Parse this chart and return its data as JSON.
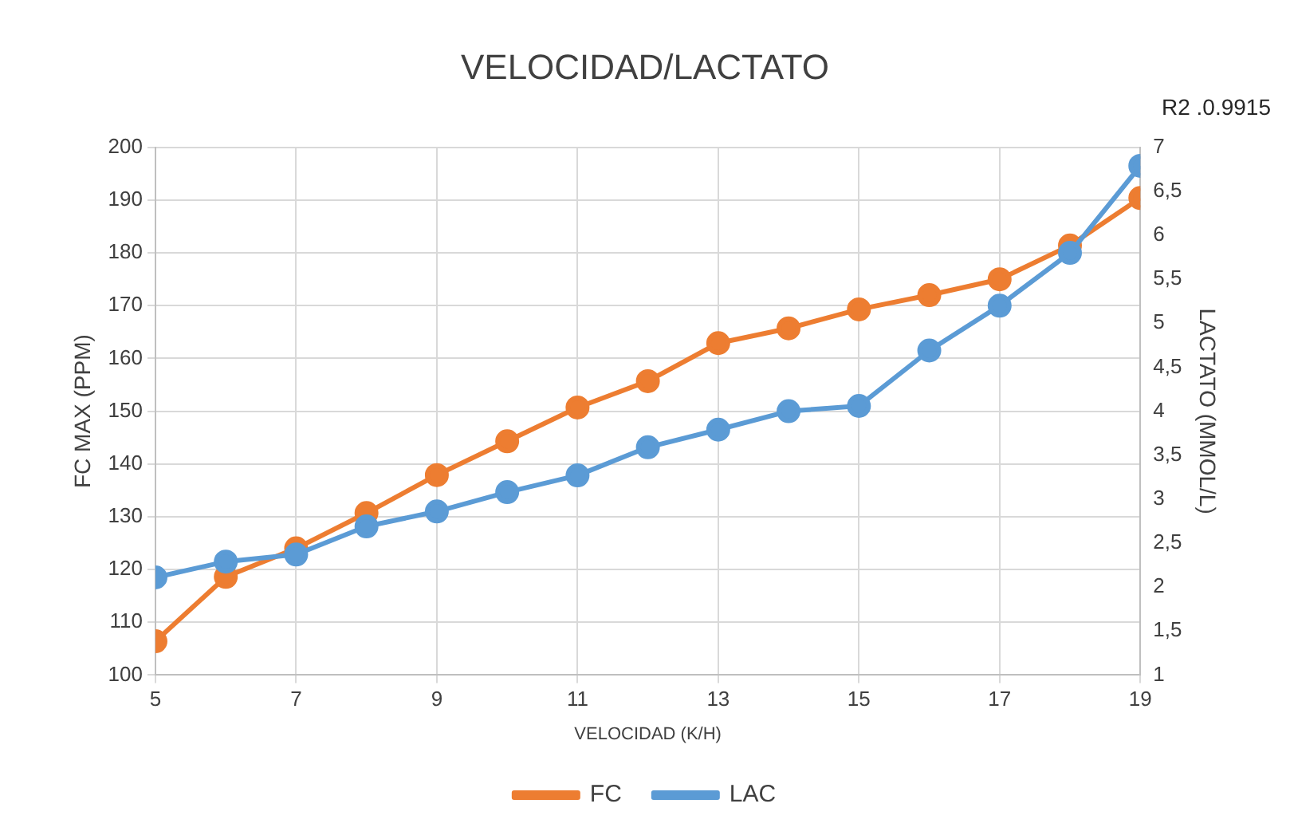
{
  "chart_data": {
    "type": "line",
    "title": "VELOCIDAD/LACTATO",
    "xlabel": "VELOCIDAD (K/H)",
    "ylabel": "FC MAX (PPM)",
    "y2label": "LACTATO (MMOL/L)",
    "annotations": [
      "R2 .0.9915"
    ],
    "x": [
      5,
      6,
      7,
      8,
      9,
      10,
      11,
      12,
      13,
      14,
      15,
      16,
      17,
      18,
      19
    ],
    "series": [
      {
        "name": "FC",
        "color": "#ed7d31",
        "values": [
          106.4,
          118.6,
          124,
          130.7,
          137.9,
          144.3,
          150.7,
          155.7,
          162.9,
          165.7,
          169.3,
          172,
          175,
          181.4,
          190.4
        ]
      },
      {
        "name": "LAC",
        "color": "#5b9bd5",
        "axis": "y2",
        "values": [
          2.11,
          2.29,
          2.37,
          2.69,
          2.86,
          3.08,
          3.27,
          3.59,
          3.79,
          4.0,
          4.06,
          4.69,
          5.2,
          5.8,
          6.79
        ]
      }
    ],
    "xlim": [
      5,
      19
    ],
    "xticks": [
      5,
      7,
      9,
      11,
      13,
      15,
      17,
      19
    ],
    "ylim": [
      100,
      200
    ],
    "yticks": [
      100,
      110,
      120,
      130,
      140,
      150,
      160,
      170,
      180,
      190,
      200
    ],
    "y2lim": [
      1,
      7
    ],
    "y2ticks": [
      1,
      {
        "value": 1.5,
        "label": "1,5"
      },
      2,
      {
        "value": 2.5,
        "label": "2,5"
      },
      3,
      {
        "value": 3.5,
        "label": "3,5"
      },
      4,
      {
        "value": 4.5,
        "label": "4,5"
      },
      5,
      {
        "value": 5.5,
        "label": "5,5"
      },
      6,
      {
        "value": 6.5,
        "label": "6,5"
      },
      7
    ],
    "grid": true,
    "legend": "bottom",
    "marker": "circle",
    "line_style": "solid"
  }
}
